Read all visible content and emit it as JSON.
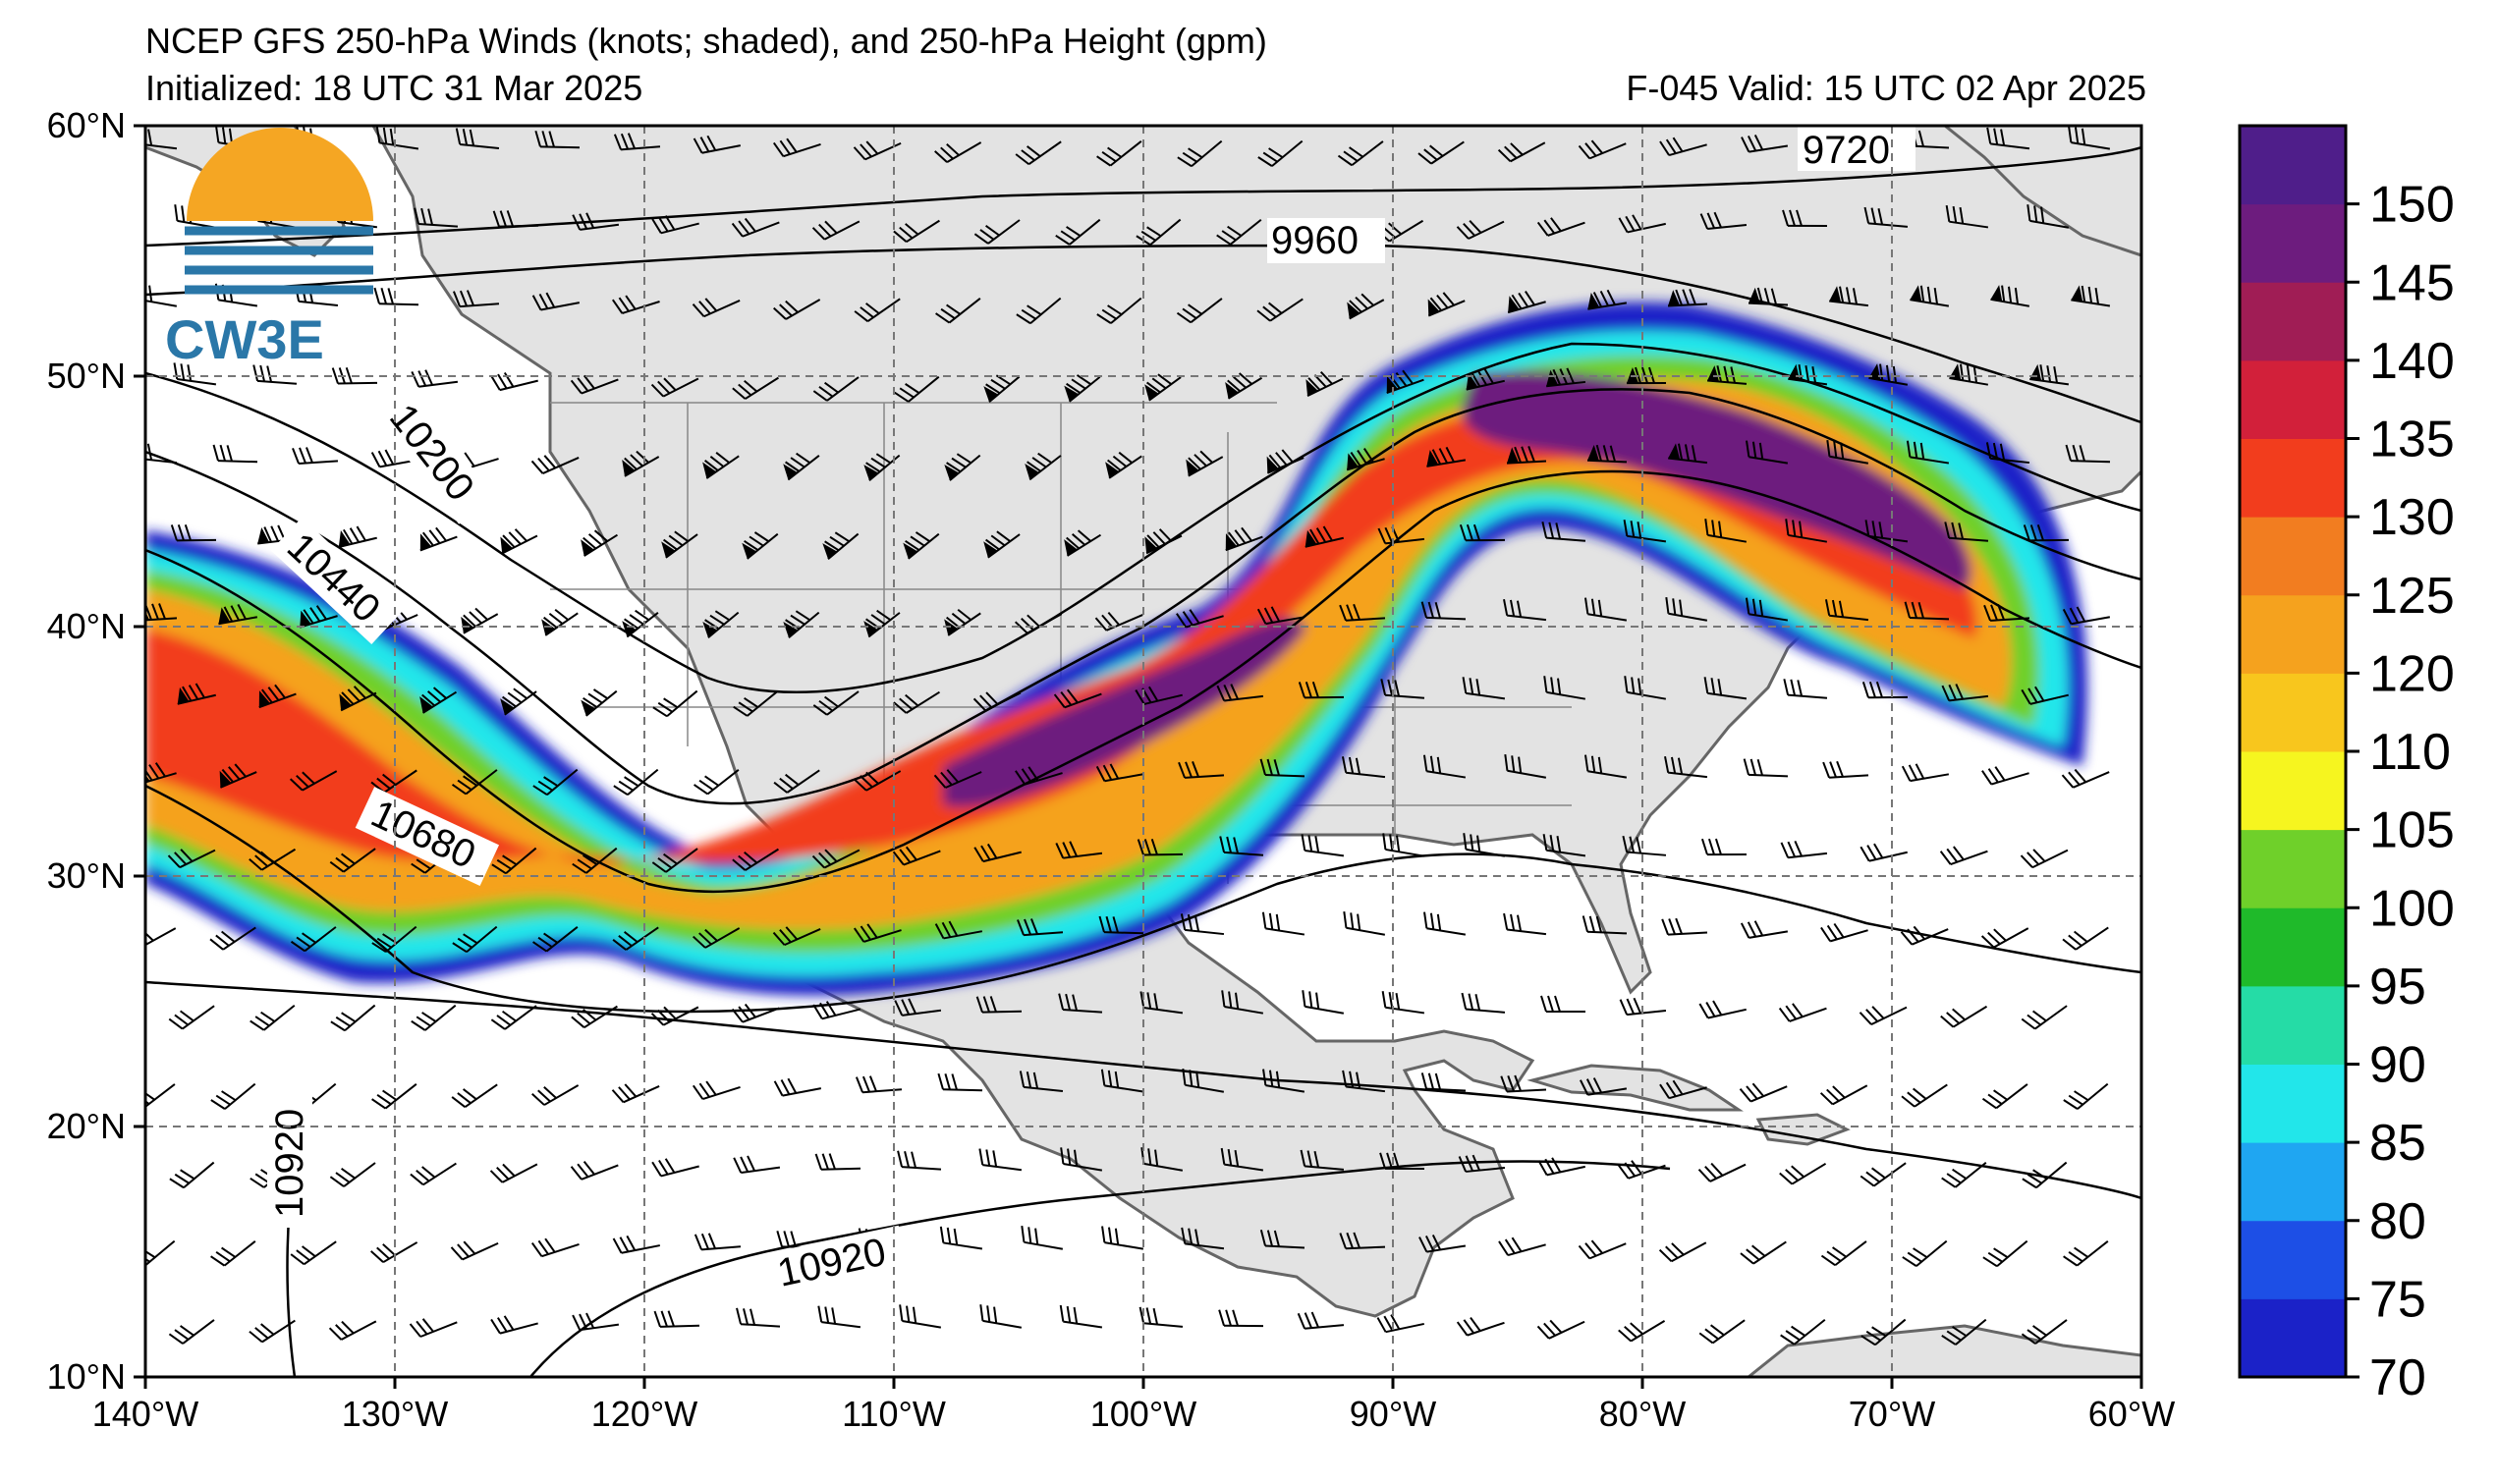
{
  "header": {
    "title": "NCEP GFS 250-hPa Winds (knots; shaded), and 250-hPa Height (gpm)",
    "initialized": "Initialized: 18 UTC 31 Mar 2025",
    "valid": "F-045  Valid: 15 UTC 02 Apr 2025"
  },
  "logo": {
    "text": "CW3E"
  },
  "map": {
    "lon_range": [
      -140,
      -60
    ],
    "lat_range": [
      10,
      60
    ],
    "lon_ticks": [
      "140°W",
      "130°W",
      "120°W",
      "110°W",
      "100°W",
      "90°W",
      "80°W",
      "70°W",
      "60°W"
    ],
    "lat_ticks": [
      "10°N",
      "20°N",
      "30°N",
      "40°N",
      "50°N",
      "60°N"
    ],
    "land_color": "#e3e3e3",
    "ocean_color": "#ffffff",
    "grid": "dashed"
  },
  "contours": {
    "levels": [
      "9720",
      "9960",
      "10200",
      "10440",
      "10680",
      "10920",
      "10920"
    ]
  },
  "colorbar": {
    "unit": "knots",
    "levels": [
      70,
      75,
      80,
      85,
      90,
      95,
      100,
      105,
      110,
      120,
      125,
      130,
      135,
      140,
      145,
      150
    ],
    "labels": [
      "70",
      "75",
      "80",
      "85",
      "90",
      "95",
      "100",
      "105",
      "110",
      "120",
      "125",
      "130",
      "135",
      "140",
      "145",
      "150"
    ],
    "colors": [
      "#1b22c8",
      "#1d4fe6",
      "#1fa6f2",
      "#22e6ea",
      "#25dca6",
      "#1fba2a",
      "#6fd02a",
      "#f6f51f",
      "#f8c61d",
      "#f5a21e",
      "#f27d20",
      "#f23d1d",
      "#d2203a",
      "#a01d55",
      "#6d1c7e",
      "#4f1e8a"
    ]
  }
}
